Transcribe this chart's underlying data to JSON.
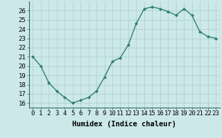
{
  "x": [
    0,
    1,
    2,
    3,
    4,
    5,
    6,
    7,
    8,
    9,
    10,
    11,
    12,
    13,
    14,
    15,
    16,
    17,
    18,
    19,
    20,
    21,
    22,
    23
  ],
  "y": [
    21,
    20,
    18.2,
    17.3,
    16.6,
    16.0,
    16.3,
    16.6,
    17.3,
    18.8,
    20.5,
    20.9,
    22.3,
    24.6,
    26.2,
    26.4,
    26.2,
    25.9,
    25.5,
    26.2,
    25.5,
    23.7,
    23.2,
    23.0
  ],
  "line_color": "#2e7d6e",
  "marker": "D",
  "marker_size": 2.0,
  "bg_color": "#cce8e8",
  "grid_color": "#aacece",
  "xlabel": "Humidex (Indice chaleur)",
  "ylim": [
    15.5,
    27.0
  ],
  "xlim": [
    -0.5,
    23.5
  ],
  "yticks": [
    16,
    17,
    18,
    19,
    20,
    21,
    22,
    23,
    24,
    25,
    26
  ],
  "xticks": [
    0,
    1,
    2,
    3,
    4,
    5,
    6,
    7,
    8,
    9,
    10,
    11,
    12,
    13,
    14,
    15,
    16,
    17,
    18,
    19,
    20,
    21,
    22,
    23
  ],
  "xlabel_fontsize": 7.5,
  "tick_fontsize": 6.5,
  "linewidth": 1.0
}
